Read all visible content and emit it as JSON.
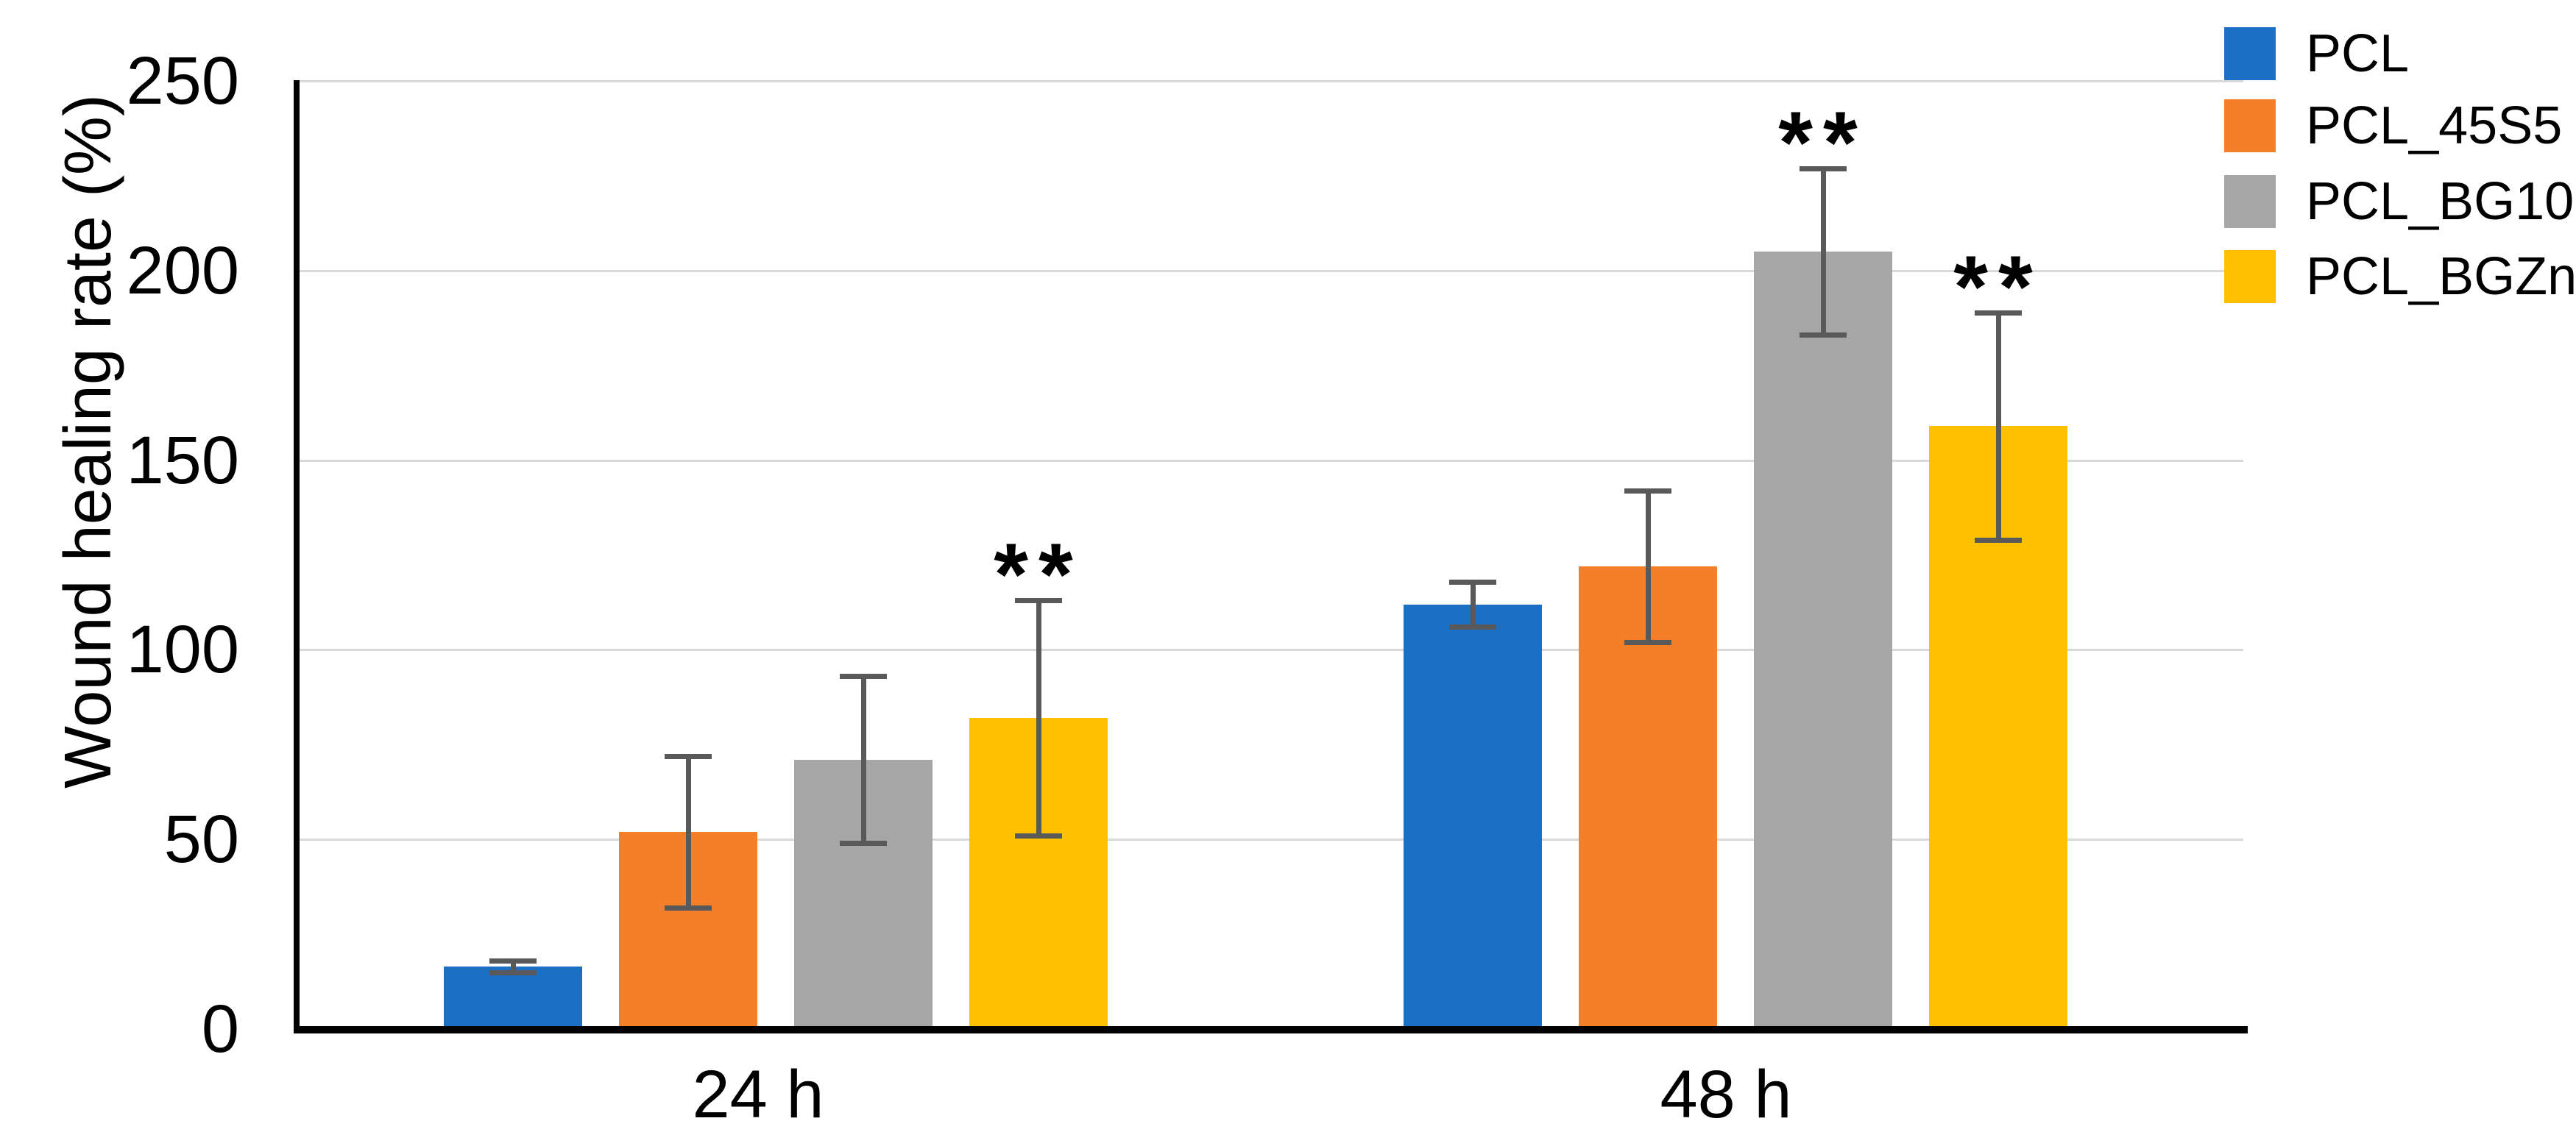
{
  "chart_data": {
    "type": "bar",
    "title": "",
    "ylabel": "Wound healing rate (%)",
    "xlabel": "",
    "categories": [
      "24 h",
      "48 h"
    ],
    "ylim": [
      0,
      250
    ],
    "yticks": [
      0,
      50,
      100,
      150,
      200,
      250
    ],
    "grid": "horizontal",
    "legend_position": "top-right",
    "series": [
      {
        "name": "PCL",
        "color": "#1b70c6",
        "values": [
          16.5,
          112
        ],
        "errors": [
          1.5,
          6
        ]
      },
      {
        "name": "PCL_45S5",
        "color": "#f57e28",
        "values": [
          52,
          122
        ],
        "errors": [
          20,
          20
        ]
      },
      {
        "name": "PCL_BG10",
        "color": "#a6a6a6",
        "values": [
          71,
          205
        ],
        "errors": [
          22,
          22
        ]
      },
      {
        "name": "PCL_BGZn",
        "color": "#ffc000",
        "values": [
          82,
          159
        ],
        "errors": [
          31,
          30
        ]
      }
    ],
    "error_bar_color": "#595959",
    "significance_marks": [
      {
        "series": "PCL_BGZn",
        "category": "24 h",
        "label": "**"
      },
      {
        "series": "PCL_BG10",
        "category": "48 h",
        "label": "**"
      },
      {
        "series": "PCL_BGZn",
        "category": "48 h",
        "label": "**"
      }
    ]
  }
}
